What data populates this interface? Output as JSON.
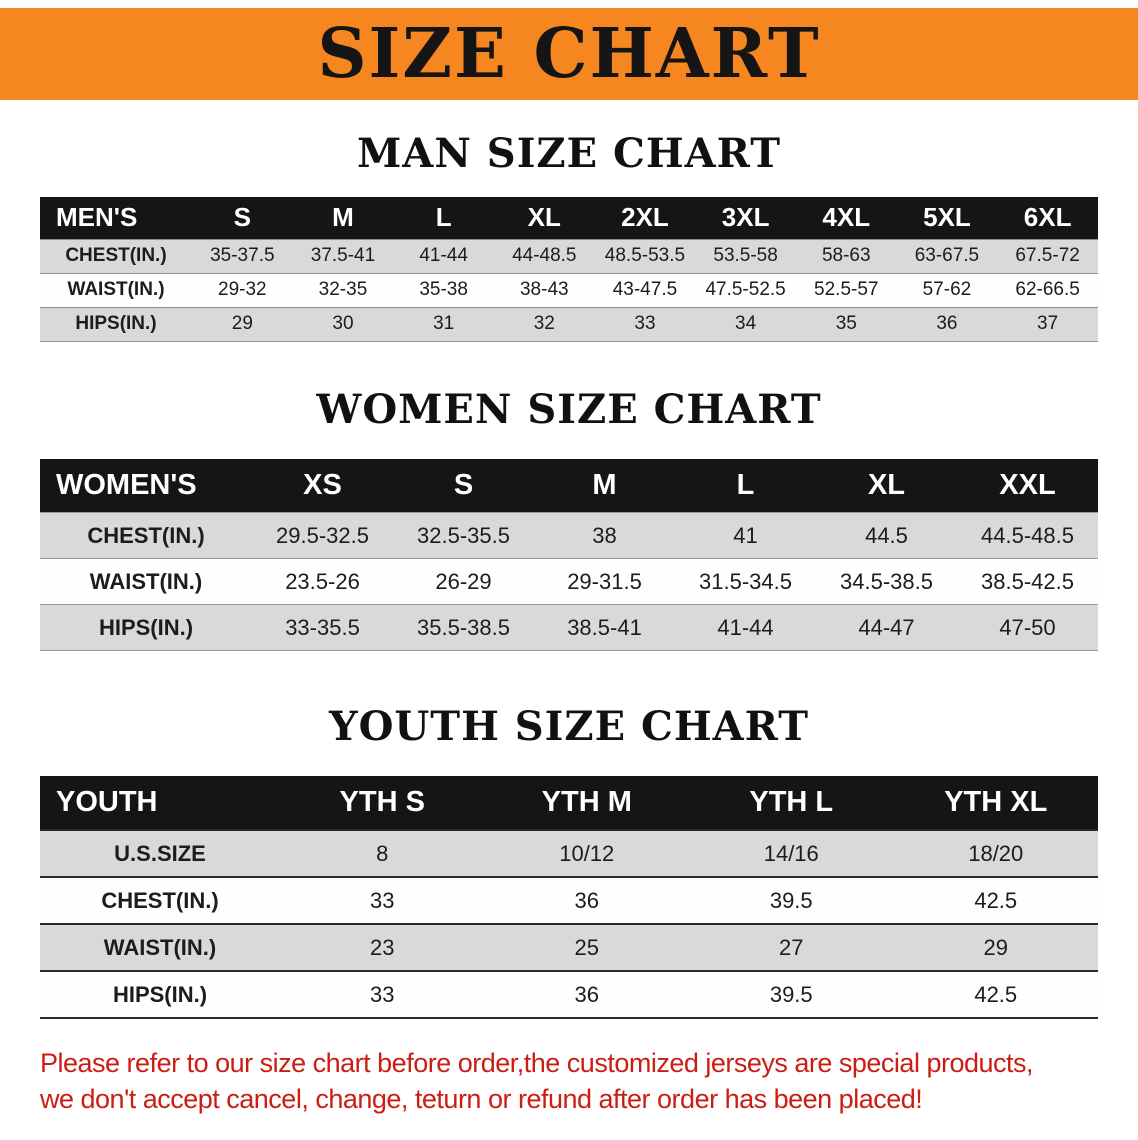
{
  "banner": {
    "title": "SIZE CHART"
  },
  "colors": {
    "banner_bg": "#f6861f",
    "banner_text": "#151515",
    "table_header_bg": "#151515",
    "table_header_text": "#ffffff",
    "row_shaded": "#d9d9d9",
    "row_plain": "#fefefe",
    "disclaimer_text": "#cc1d14"
  },
  "chart_data": [
    {
      "type": "table",
      "title": "MAN SIZE CHART",
      "columns": [
        "MEN'S",
        "S",
        "M",
        "L",
        "XL",
        "2XL",
        "3XL",
        "4XL",
        "5XL",
        "6XL"
      ],
      "rows": [
        [
          "CHEST(IN.)",
          "35-37.5",
          "37.5-41",
          "41-44",
          "44-48.5",
          "48.5-53.5",
          "53.5-58",
          "58-63",
          "63-67.5",
          "67.5-72"
        ],
        [
          "WAIST(IN.)",
          "29-32",
          "32-35",
          "35-38",
          "38-43",
          "43-47.5",
          "47.5-52.5",
          "52.5-57",
          "57-62",
          "62-66.5"
        ],
        [
          "HIPS(IN.)",
          "29",
          "30",
          "31",
          "32",
          "33",
          "34",
          "35",
          "36",
          "37"
        ]
      ]
    },
    {
      "type": "table",
      "title": "WOMEN SIZE CHART",
      "columns": [
        "WOMEN'S",
        "XS",
        "S",
        "M",
        "L",
        "XL",
        "XXL"
      ],
      "rows": [
        [
          "CHEST(IN.)",
          "29.5-32.5",
          "32.5-35.5",
          "38",
          "41",
          "44.5",
          "44.5-48.5"
        ],
        [
          "WAIST(IN.)",
          "23.5-26",
          "26-29",
          "29-31.5",
          "31.5-34.5",
          "34.5-38.5",
          "38.5-42.5"
        ],
        [
          "HIPS(IN.)",
          "33-35.5",
          "35.5-38.5",
          "38.5-41",
          "41-44",
          "44-47",
          "47-50"
        ]
      ]
    },
    {
      "type": "table",
      "title": "YOUTH SIZE CHART",
      "columns": [
        "YOUTH",
        "YTH S",
        "YTH M",
        "YTH L",
        "YTH XL"
      ],
      "rows": [
        [
          "U.S.SIZE",
          "8",
          "10/12",
          "14/16",
          "18/20"
        ],
        [
          "CHEST(IN.)",
          "33",
          "36",
          "39.5",
          "42.5"
        ],
        [
          "WAIST(IN.)",
          "23",
          "25",
          "27",
          "29"
        ],
        [
          "HIPS(IN.)",
          "33",
          "36",
          "39.5",
          "42.5"
        ]
      ]
    }
  ],
  "disclaimer": {
    "line1": "Please refer to our size chart before order,the customized jerseys are special products,",
    "line2": "we don't accept cancel, change, teturn or refund after order has been placed!"
  }
}
